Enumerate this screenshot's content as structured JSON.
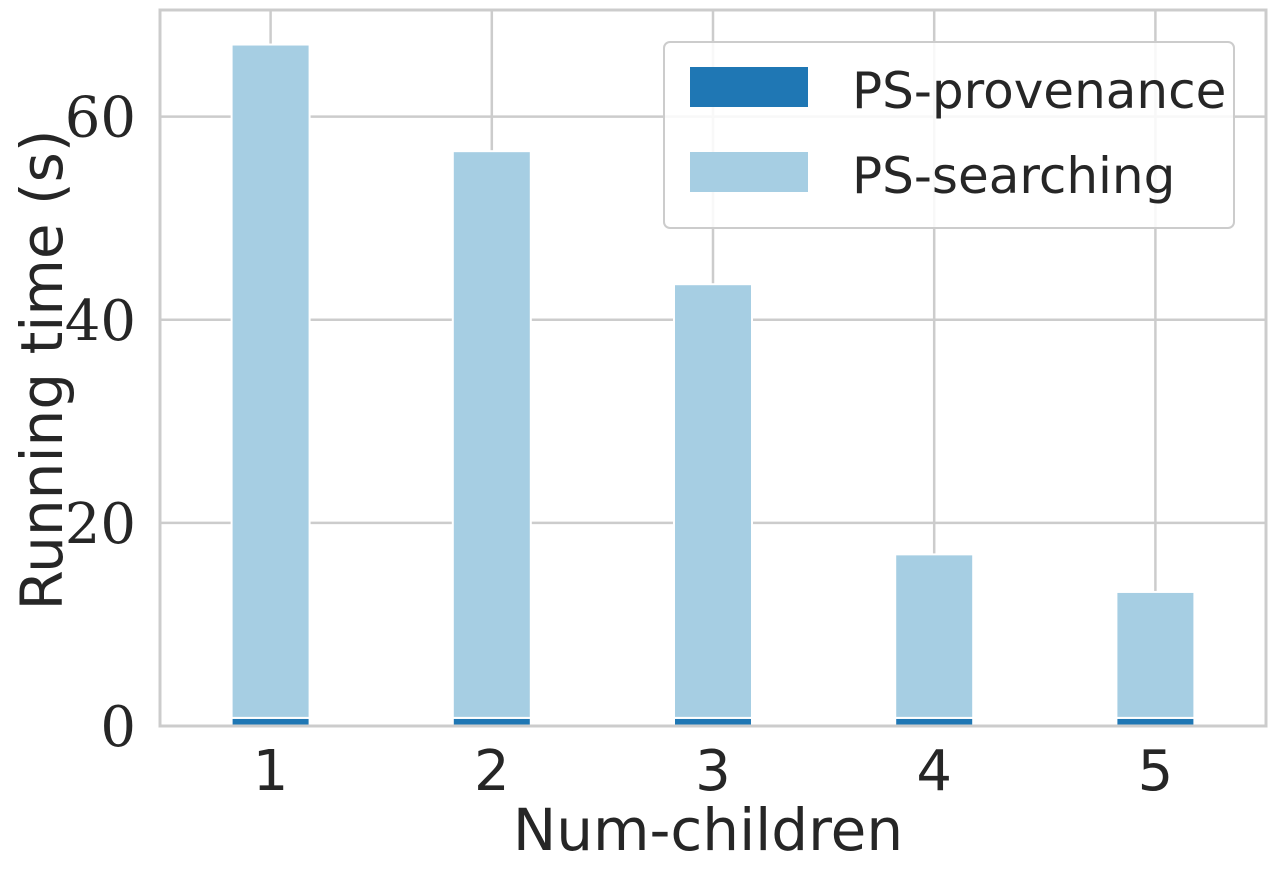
{
  "chart_data": {
    "type": "bar",
    "stacked": true,
    "categories": [
      "1",
      "2",
      "3",
      "4",
      "5"
    ],
    "series": [
      {
        "name": "PS-provenance",
        "values": [
          0.8,
          0.8,
          0.8,
          0.8,
          0.8
        ],
        "color": "#1f77b4"
      },
      {
        "name": "PS-searching",
        "values": [
          66.3,
          55.8,
          42.7,
          16.1,
          12.4
        ],
        "color": "#a6cee3"
      }
    ],
    "xlabel": "Num-children",
    "ylabel": "Running time (s)",
    "ylim": [
      0,
      70.5
    ],
    "yticks": [
      0,
      20,
      40,
      60
    ],
    "grid": true,
    "legend_position": "top-right"
  }
}
